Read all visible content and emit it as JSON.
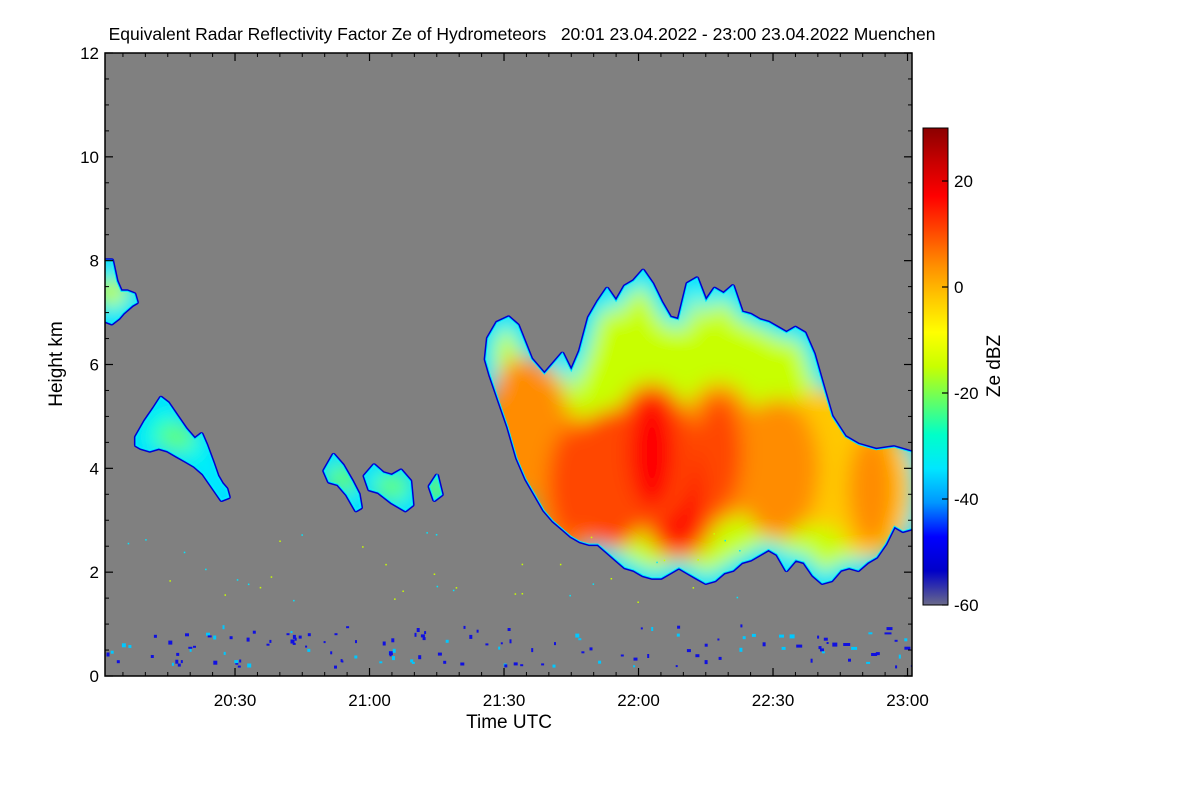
{
  "chart_data": {
    "type": "heatmap",
    "title": "Equivalent Radar Reflectivity Factor Ze of Hydrometeors   20:01 23.04.2022 - 23:00 23.04.2022 Muenchen",
    "xlabel": "Time UTC",
    "ylabel": "Height km",
    "x_start": "20:01",
    "x_end": "23:00",
    "xlim_minutes": [
      0,
      180
    ],
    "x_ticks": [
      {
        "minute": 29,
        "label": "20:30"
      },
      {
        "minute": 59,
        "label": "21:00"
      },
      {
        "minute": 89,
        "label": "21:30"
      },
      {
        "minute": 119,
        "label": "22:00"
      },
      {
        "minute": 149,
        "label": "22:30"
      },
      {
        "minute": 179,
        "label": "23:00"
      }
    ],
    "ylim_km": [
      0,
      12
    ],
    "y_ticks": [
      0,
      2,
      4,
      6,
      8,
      10,
      12
    ],
    "background_color": "#808080",
    "colorbar": {
      "label": "Ze dBZ",
      "range_dbz": [
        -60,
        30
      ],
      "ticks": [
        -60,
        -40,
        -20,
        0,
        20
      ],
      "colors": [
        "#6a6a8a",
        "#0000c8",
        "#0000ff",
        "#0096ff",
        "#00e6ff",
        "#00ffc8",
        "#64ff64",
        "#c8ff00",
        "#ffff00",
        "#ffc800",
        "#ff8c00",
        "#ff4600",
        "#ff0000",
        "#c80000",
        "#8b0000"
      ]
    },
    "echoes": [
      {
        "name": "main-convective-system",
        "outline": [
          [
            85.5,
            6.5
          ],
          [
            87.5,
            6.8
          ],
          [
            90,
            6.9
          ],
          [
            92,
            6.75
          ],
          [
            95,
            6.1
          ],
          [
            98,
            5.8
          ],
          [
            100.5,
            6.05
          ],
          [
            102,
            6.2
          ],
          [
            104,
            5.85
          ],
          [
            106,
            6.25
          ],
          [
            108,
            6.9
          ],
          [
            110,
            7.2
          ],
          [
            112,
            7.45
          ],
          [
            114,
            7.2
          ],
          [
            116,
            7.5
          ],
          [
            118,
            7.6
          ],
          [
            120,
            7.8
          ],
          [
            122,
            7.55
          ],
          [
            124,
            7.2
          ],
          [
            126,
            6.9
          ],
          [
            128,
            6.85
          ],
          [
            130,
            7.55
          ],
          [
            132,
            7.65
          ],
          [
            134,
            7.2
          ],
          [
            136,
            7.45
          ],
          [
            138,
            7.35
          ],
          [
            140,
            7.5
          ],
          [
            142,
            7.0
          ],
          [
            144,
            6.95
          ],
          [
            146,
            6.85
          ],
          [
            148,
            6.8
          ],
          [
            150,
            6.7
          ],
          [
            152,
            6.6
          ],
          [
            154,
            6.7
          ],
          [
            156,
            6.6
          ],
          [
            158,
            6.2
          ],
          [
            160,
            5.6
          ],
          [
            162,
            5.0
          ],
          [
            165,
            4.6
          ],
          [
            168,
            4.45
          ],
          [
            172,
            4.35
          ],
          [
            176,
            4.4
          ],
          [
            180,
            4.3
          ],
          [
            180,
            2.85
          ],
          [
            178,
            2.8
          ],
          [
            176,
            2.9
          ],
          [
            174,
            2.55
          ],
          [
            172,
            2.3
          ],
          [
            170,
            2.2
          ],
          [
            168,
            2.05
          ],
          [
            166,
            2.1
          ],
          [
            164,
            2.05
          ],
          [
            162,
            1.85
          ],
          [
            160,
            1.8
          ],
          [
            158,
            1.95
          ],
          [
            156,
            2.2
          ],
          [
            154,
            2.25
          ],
          [
            152,
            2.05
          ],
          [
            150,
            2.35
          ],
          [
            148,
            2.45
          ],
          [
            146,
            2.35
          ],
          [
            144,
            2.25
          ],
          [
            142,
            2.2
          ],
          [
            140,
            2.05
          ],
          [
            138,
            2.0
          ],
          [
            136,
            1.85
          ],
          [
            134,
            1.8
          ],
          [
            132,
            1.9
          ],
          [
            130,
            2.0
          ],
          [
            128,
            2.1
          ],
          [
            126,
            2.0
          ],
          [
            124,
            1.9
          ],
          [
            122,
            1.9
          ],
          [
            120,
            1.95
          ],
          [
            118,
            2.05
          ],
          [
            116,
            2.1
          ],
          [
            114,
            2.25
          ],
          [
            112,
            2.4
          ],
          [
            110,
            2.55
          ],
          [
            108,
            2.55
          ],
          [
            106,
            2.6
          ],
          [
            104,
            2.7
          ],
          [
            102,
            2.85
          ],
          [
            100,
            3.0
          ],
          [
            98,
            3.2
          ],
          [
            96,
            3.5
          ],
          [
            94,
            3.8
          ],
          [
            92,
            4.2
          ],
          [
            90,
            4.8
          ],
          [
            88,
            5.3
          ],
          [
            86,
            5.8
          ],
          [
            85,
            6.1
          ]
        ],
        "cores": [
          {
            "minute": 122,
            "km": 4.3,
            "dbz": 12
          },
          {
            "minute": 128,
            "km": 3.6,
            "dbz": 10
          },
          {
            "minute": 113,
            "km": 3.8,
            "dbz": 8
          },
          {
            "minute": 137,
            "km": 4.3,
            "dbz": 7
          },
          {
            "minute": 104,
            "km": 3.7,
            "dbz": 5
          },
          {
            "minute": 150,
            "km": 4.0,
            "dbz": 2
          },
          {
            "minute": 94,
            "km": 4.8,
            "dbz": 3
          },
          {
            "minute": 171,
            "km": 3.6,
            "dbz": 0
          },
          {
            "minute": 160,
            "km": 4.2,
            "dbz": -4
          }
        ]
      },
      {
        "name": "upper-cirrus-left",
        "outline": [
          [
            0,
            8.0
          ],
          [
            1.5,
            8.0
          ],
          [
            2.5,
            7.6
          ],
          [
            3.5,
            7.4
          ],
          [
            5,
            7.4
          ],
          [
            6.5,
            7.35
          ],
          [
            7,
            7.2
          ],
          [
            6,
            7.15
          ],
          [
            4,
            7.0
          ],
          [
            3,
            6.9
          ],
          [
            1.5,
            6.8
          ],
          [
            0,
            6.85
          ]
        ],
        "cores": [
          {
            "minute": 1.2,
            "km": 7.4,
            "dbz": -14
          }
        ]
      },
      {
        "name": "mid-level-band-left",
        "outline": [
          [
            7,
            4.6
          ],
          [
            9,
            4.9
          ],
          [
            11,
            5.15
          ],
          [
            12.5,
            5.35
          ],
          [
            14,
            5.25
          ],
          [
            16,
            5.0
          ],
          [
            18,
            4.75
          ],
          [
            20,
            4.55
          ],
          [
            21.5,
            4.65
          ],
          [
            22.5,
            4.45
          ],
          [
            24,
            4.1
          ],
          [
            25,
            3.85
          ],
          [
            26,
            3.7
          ],
          [
            27,
            3.6
          ],
          [
            27.5,
            3.45
          ],
          [
            26,
            3.4
          ],
          [
            24,
            3.65
          ],
          [
            22,
            3.9
          ],
          [
            20,
            4.05
          ],
          [
            18,
            4.15
          ],
          [
            16,
            4.25
          ],
          [
            14,
            4.35
          ],
          [
            12,
            4.4
          ],
          [
            10,
            4.35
          ],
          [
            8,
            4.4
          ],
          [
            7,
            4.45
          ]
        ],
        "cores": [
          {
            "minute": 16,
            "km": 4.6,
            "dbz": -22
          }
        ]
      },
      {
        "name": "small-cell-2115",
        "outline": [
          [
            49,
            3.95
          ],
          [
            51,
            4.25
          ],
          [
            53,
            4.05
          ],
          [
            55,
            3.75
          ],
          [
            56.5,
            3.5
          ],
          [
            57,
            3.25
          ],
          [
            56,
            3.2
          ],
          [
            54,
            3.5
          ],
          [
            52,
            3.7
          ],
          [
            50,
            3.75
          ]
        ],
        "cores": [
          {
            "minute": 53,
            "km": 3.8,
            "dbz": -24
          }
        ]
      },
      {
        "name": "small-cell-2125",
        "outline": [
          [
            58,
            3.85
          ],
          [
            60,
            4.05
          ],
          [
            62,
            3.9
          ],
          [
            64,
            3.85
          ],
          [
            66,
            3.95
          ],
          [
            68,
            3.75
          ],
          [
            68.5,
            3.3
          ],
          [
            67,
            3.2
          ],
          [
            64,
            3.35
          ],
          [
            61,
            3.55
          ],
          [
            59,
            3.6
          ]
        ],
        "cores": [
          {
            "minute": 64,
            "km": 3.65,
            "dbz": -20
          }
        ]
      },
      {
        "name": "small-cell-2136",
        "outline": [
          [
            72.5,
            3.65
          ],
          [
            74,
            3.85
          ],
          [
            75,
            3.5
          ],
          [
            73.5,
            3.4
          ]
        ],
        "cores": [
          {
            "minute": 73.8,
            "km": 3.6,
            "dbz": -22
          }
        ]
      }
    ]
  }
}
